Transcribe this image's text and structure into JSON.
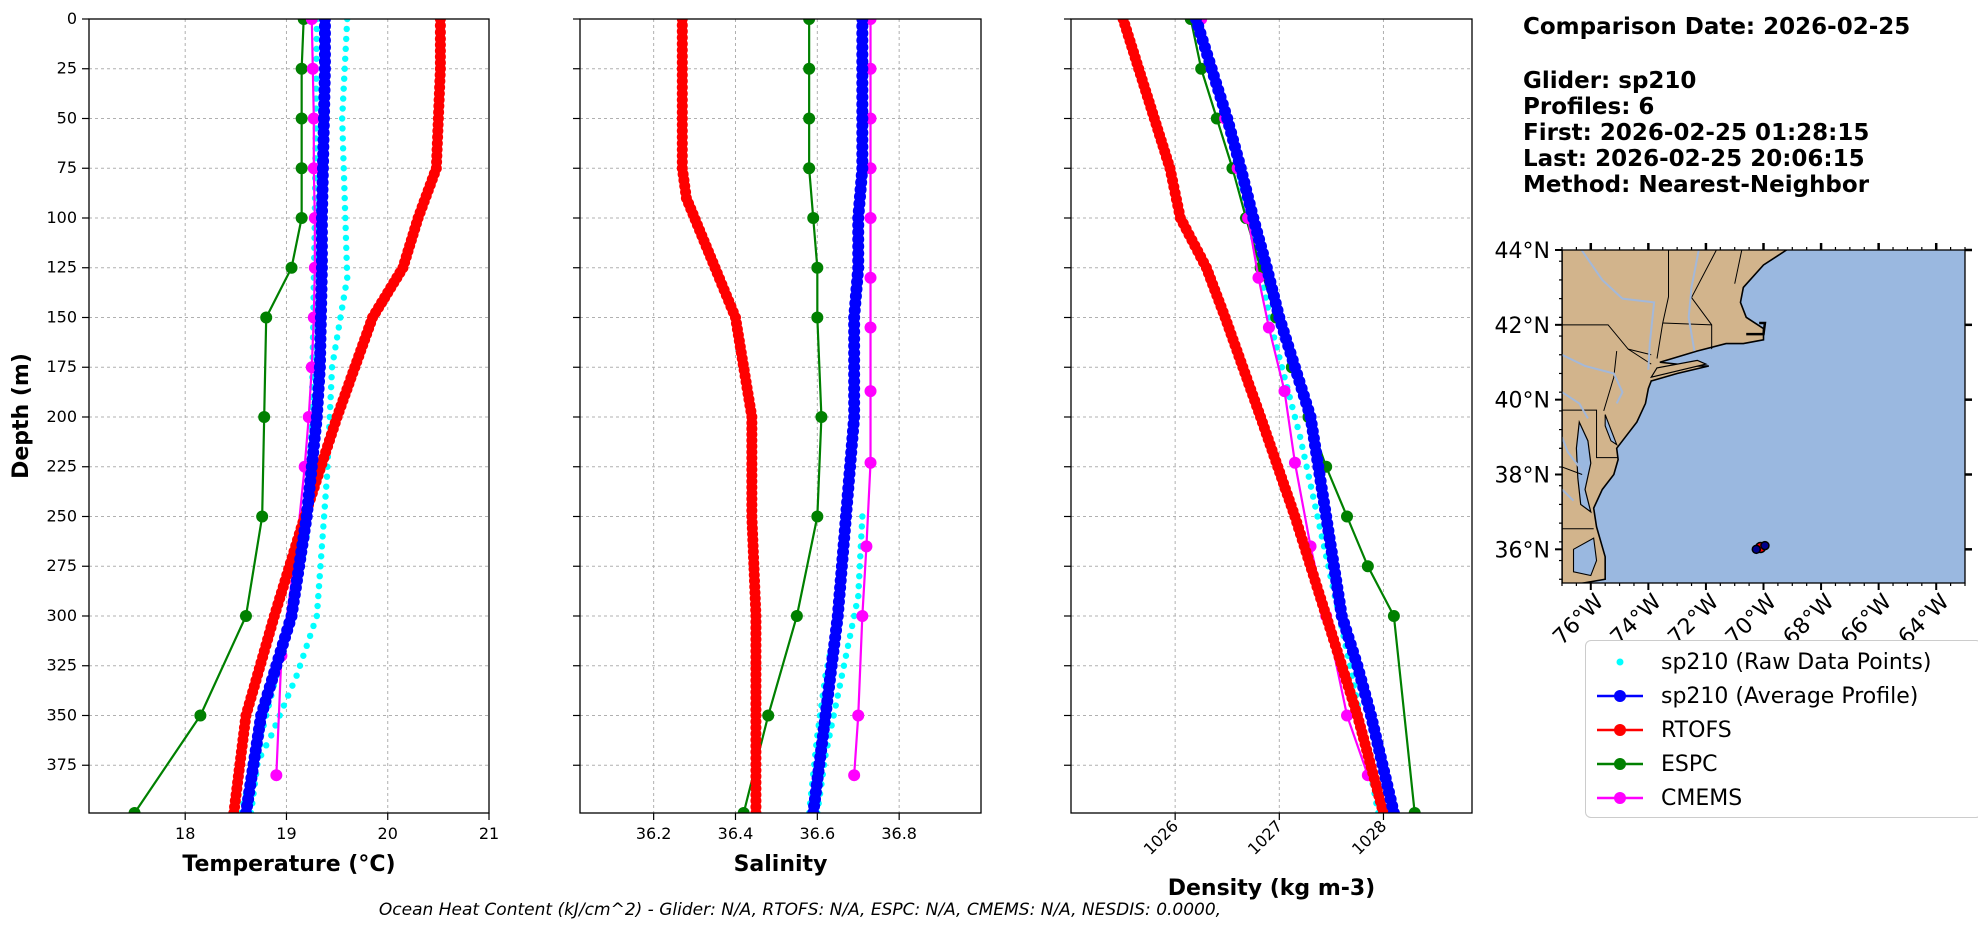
{
  "info": {
    "comparison_date": "Comparison Date: 2026-02-25",
    "glider": "Glider: sp210",
    "profiles": "Profiles: 6",
    "first": "First: 2026-02-25 01:28:15",
    "last": "Last: 2026-02-25 20:06:15",
    "method": "Method: Nearest-Neighbor"
  },
  "footer": "Ocean Heat Content (kJ/cm^2) - Glider: N/A,  RTOFS: N/A,  ESPC: N/A,  CMEMS: N/A,  NESDIS: 0.0000,",
  "colors": {
    "raw": "#00ffff",
    "avg": "#0000ff",
    "rtofs": "#ff0000",
    "espc": "#008000",
    "cmems": "#ff00ff",
    "land": "#d2b48c",
    "ocean": "#9ab8e0",
    "rivers": "#a3b8d9"
  },
  "legend": [
    {
      "label": "sp210 (Raw Data Points)",
      "color": "#00ffff",
      "style": "raw"
    },
    {
      "label": "sp210 (Average Profile)",
      "color": "#0000ff",
      "style": "line"
    },
    {
      "label": "RTOFS",
      "color": "#ff0000",
      "style": "line"
    },
    {
      "label": "ESPC",
      "color": "#008000",
      "style": "line"
    },
    {
      "label": "CMEMS",
      "color": "#ff00ff",
      "style": "line"
    }
  ],
  "chart_data": [
    {
      "type": "line",
      "xlabel": "Temperature (°C)",
      "ylabel": "Depth (m)",
      "xlim": [
        17.05,
        21.0
      ],
      "ylim": [
        399,
        0
      ],
      "xticks": [
        18,
        19,
        20,
        21
      ],
      "yticks": [
        0,
        25,
        50,
        75,
        100,
        125,
        150,
        175,
        200,
        225,
        250,
        275,
        300,
        325,
        350,
        375
      ],
      "series": [
        {
          "name": "RTOFS",
          "x": [
            20.52,
            20.52,
            20.52,
            20.5,
            20.48,
            20.3,
            20.15,
            19.85,
            19.5,
            19.18,
            18.88,
            18.6,
            18.48
          ],
          "y": [
            0,
            10,
            25,
            50,
            75,
            100,
            125,
            150,
            200,
            250,
            300,
            350,
            399
          ]
        },
        {
          "name": "ESPC",
          "x": [
            19.17,
            19.15,
            19.15,
            19.15,
            19.15,
            19.05,
            18.8,
            18.78,
            18.76,
            18.6,
            18.15,
            17.5
          ],
          "y": [
            0,
            25,
            50,
            75,
            100,
            125,
            150,
            200,
            250,
            300,
            350,
            399
          ]
        },
        {
          "name": "CMEMS",
          "x": [
            19.25,
            19.26,
            19.27,
            19.27,
            19.28,
            19.28,
            19.27,
            19.25,
            19.22,
            19.18,
            19.1,
            18.95,
            18.9
          ],
          "y": [
            0,
            25,
            50,
            75,
            100,
            125,
            150,
            175,
            200,
            225,
            265,
            320,
            380
          ]
        },
        {
          "name": "sp210 (Average Profile)",
          "x": [
            19.38,
            19.38,
            19.37,
            19.36,
            19.35,
            19.35,
            19.34,
            19.33,
            19.3,
            19.2,
            19.05,
            18.9,
            18.75,
            18.6
          ],
          "y": [
            0,
            25,
            50,
            75,
            100,
            125,
            150,
            175,
            200,
            250,
            300,
            325,
            350,
            399
          ]
        },
        {
          "name": "sp210 (Raw Data Points)",
          "x": [
            19.6,
            19.55,
            19.6,
            19.45,
            19.4,
            19.3,
            19.1,
            18.85,
            18.65,
            18.55
          ],
          "y": [
            0,
            50,
            130,
            175,
            230,
            300,
            330,
            360,
            380,
            399
          ]
        },
        {
          "name": "sp210 (Raw Data Points)",
          "x": [
            19.3,
            19.28,
            19.25,
            19.2,
            19.05,
            18.9,
            18.75,
            18.65
          ],
          "y": [
            0,
            100,
            200,
            260,
            300,
            330,
            360,
            399
          ]
        }
      ]
    },
    {
      "type": "line",
      "xlabel": "Salinity",
      "xlim": [
        36.02,
        37.0
      ],
      "ylim": [
        399,
        0
      ],
      "xticks": [
        36.2,
        36.4,
        36.6,
        36.8
      ],
      "series": [
        {
          "name": "RTOFS",
          "x": [
            36.27,
            36.27,
            36.27,
            36.27,
            36.28,
            36.35,
            36.4,
            36.44,
            36.44,
            36.45,
            36.45,
            36.45
          ],
          "y": [
            0,
            25,
            50,
            75,
            90,
            125,
            150,
            200,
            250,
            300,
            350,
            399
          ]
        },
        {
          "name": "ESPC",
          "x": [
            36.58,
            36.58,
            36.58,
            36.58,
            36.59,
            36.6,
            36.6,
            36.61,
            36.6,
            36.55,
            36.48,
            36.42
          ],
          "y": [
            0,
            25,
            50,
            75,
            100,
            125,
            150,
            200,
            250,
            300,
            350,
            399
          ]
        },
        {
          "name": "CMEMS",
          "x": [
            36.73,
            36.73,
            36.73,
            36.73,
            36.73,
            36.73,
            36.73,
            36.73,
            36.73,
            36.72,
            36.71,
            36.7,
            36.69
          ],
          "y": [
            0,
            25,
            50,
            75,
            100,
            130,
            155,
            187,
            223,
            265,
            300,
            350,
            380
          ]
        },
        {
          "name": "sp210 (Average Profile)",
          "x": [
            36.71,
            36.71,
            36.71,
            36.71,
            36.7,
            36.7,
            36.69,
            36.69,
            36.68,
            36.67,
            36.65,
            36.62,
            36.59
          ],
          "y": [
            0,
            25,
            50,
            75,
            100,
            125,
            150,
            200,
            225,
            250,
            300,
            350,
            399
          ]
        },
        {
          "name": "sp210 (Raw Data Points)",
          "x": [
            36.67,
            36.65,
            36.62,
            36.6,
            36.58
          ],
          "y": [
            245,
            300,
            330,
            360,
            399
          ]
        },
        {
          "name": "sp210 (Raw Data Points)",
          "x": [
            36.71,
            36.7,
            36.66,
            36.62,
            36.6
          ],
          "y": [
            250,
            290,
            330,
            370,
            399
          ]
        }
      ]
    },
    {
      "type": "line",
      "xlabel": "Density (kg m-3)",
      "xlim": [
        1025.0,
        1028.85
      ],
      "ylim": [
        399,
        0
      ],
      "xticks": [
        1026,
        1027,
        1028
      ],
      "series": [
        {
          "name": "RTOFS",
          "x": [
            1025.5,
            1025.65,
            1025.8,
            1025.95,
            1026.05,
            1026.3,
            1026.48,
            1026.82,
            1027.15,
            1027.45,
            1027.75,
            1028.0
          ],
          "y": [
            0,
            25,
            50,
            75,
            100,
            125,
            150,
            200,
            250,
            300,
            350,
            399
          ]
        },
        {
          "name": "ESPC",
          "x": [
            1026.15,
            1026.25,
            1026.4,
            1026.55,
            1026.68,
            1026.82,
            1026.97,
            1027.12,
            1027.28,
            1027.45,
            1027.65,
            1027.85,
            1028.1,
            1028.3
          ],
          "y": [
            0,
            25,
            50,
            75,
            100,
            125,
            150,
            175,
            200,
            225,
            250,
            275,
            300,
            399
          ]
        },
        {
          "name": "CMEMS",
          "x": [
            1026.25,
            1026.35,
            1026.48,
            1026.6,
            1026.7,
            1026.8,
            1026.9,
            1027.05,
            1027.15,
            1027.3,
            1027.45,
            1027.65,
            1027.85
          ],
          "y": [
            0,
            25,
            50,
            75,
            100,
            130,
            155,
            187,
            223,
            265,
            300,
            350,
            380
          ]
        },
        {
          "name": "sp210 (Average Profile)",
          "x": [
            1026.2,
            1026.35,
            1026.5,
            1026.63,
            1026.75,
            1026.88,
            1027.0,
            1027.15,
            1027.3,
            1027.45,
            1027.6,
            1027.75,
            1027.88,
            1028.1
          ],
          "y": [
            0,
            25,
            50,
            75,
            100,
            125,
            150,
            175,
            200,
            250,
            300,
            325,
            350,
            399
          ]
        },
        {
          "name": "sp210 (Raw Data Points)",
          "x": [
            1026.5,
            1026.75,
            1026.95,
            1027.2,
            1027.45,
            1027.7,
            1027.95
          ],
          "y": [
            50,
            110,
            160,
            210,
            270,
            330,
            399
          ]
        }
      ]
    },
    {
      "type": "map",
      "xticks": [
        "76°W",
        "74°W",
        "72°W",
        "70°W",
        "68°W",
        "66°W",
        "64°W"
      ],
      "yticks": [
        "44°N",
        "42°N",
        "40°N",
        "38°N",
        "36°N"
      ],
      "lon_range": [
        -77.0,
        -63.0
      ],
      "lat_range": [
        35.1,
        44.0
      ],
      "track": [
        {
          "lon": -70.1,
          "lat": 36.05
        },
        {
          "lon": -70.25,
          "lat": 36.0
        },
        {
          "lon": -69.95,
          "lat": 36.1
        }
      ]
    }
  ]
}
